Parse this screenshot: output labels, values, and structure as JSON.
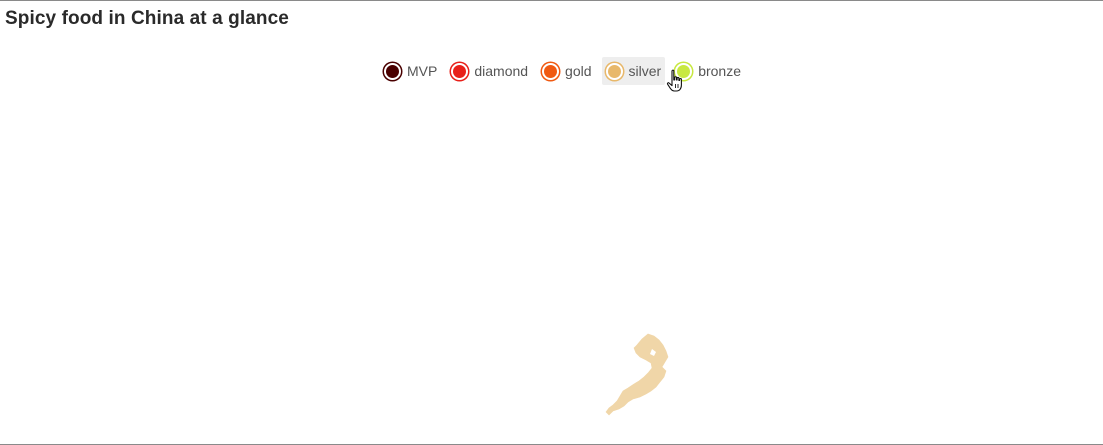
{
  "chart_data": {
    "type": "map",
    "title": "Spicy food in China at a glance",
    "legend": [
      {
        "name": "MVP",
        "color": "#4a0000",
        "active": true
      },
      {
        "name": "diamond",
        "color": "#e8201a",
        "active": true
      },
      {
        "name": "gold",
        "color": "#f05a12",
        "active": true
      },
      {
        "name": "silver",
        "color": "#e8b86a",
        "active": true,
        "hovered": true
      },
      {
        "name": "bronze",
        "color": "#c8e840",
        "active": true
      }
    ],
    "visible_regions": [
      {
        "category": "silver",
        "color": "#f0d6a8"
      }
    ]
  },
  "cursor": {
    "icon": "hand-pointer-icon"
  }
}
